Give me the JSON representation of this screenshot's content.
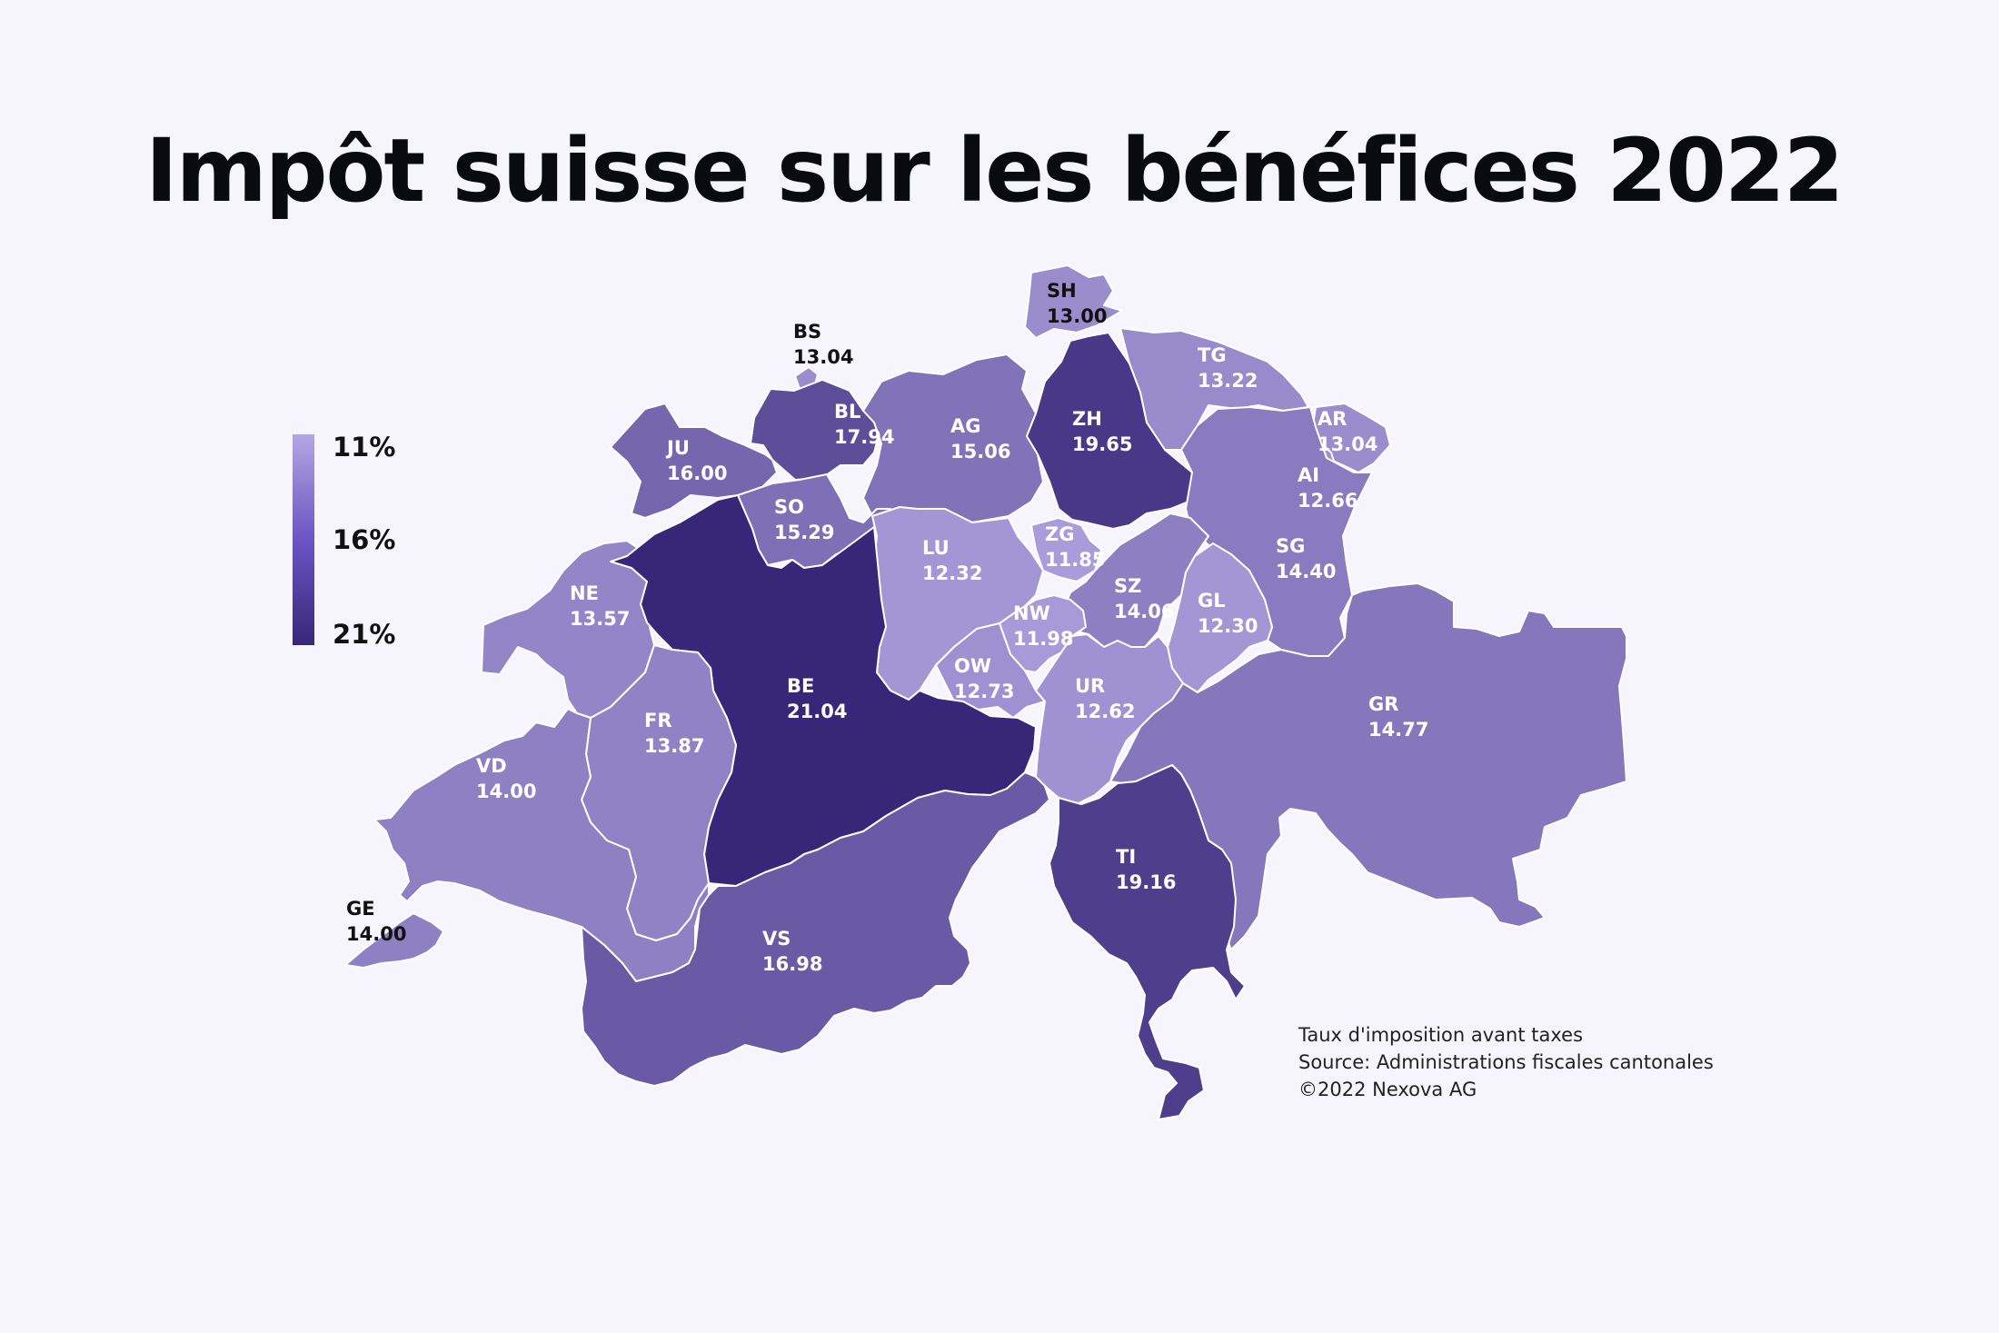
{
  "title": "Impôt suisse sur les bénéfices 2022",
  "legend": {
    "labels": [
      "11%",
      "16%",
      "21%"
    ],
    "min": 11,
    "max": 21
  },
  "colors": {
    "background": "#f6f5fd",
    "low": "#b2a7e3",
    "high": "#372779",
    "border": "#ffffff"
  },
  "cantons": [
    {
      "code": "SH",
      "value": "13.00"
    },
    {
      "code": "BS",
      "value": "13.04"
    },
    {
      "code": "TG",
      "value": "13.22"
    },
    {
      "code": "BL",
      "value": "17.94"
    },
    {
      "code": "AG",
      "value": "15.06"
    },
    {
      "code": "ZH",
      "value": "19.65"
    },
    {
      "code": "AR",
      "value": "13.04"
    },
    {
      "code": "JU",
      "value": "16.00"
    },
    {
      "code": "AI",
      "value": "12.66"
    },
    {
      "code": "SO",
      "value": "15.29"
    },
    {
      "code": "LU",
      "value": "12.32"
    },
    {
      "code": "ZG",
      "value": "11.85"
    },
    {
      "code": "SG",
      "value": "14.40"
    },
    {
      "code": "NE",
      "value": "13.57"
    },
    {
      "code": "SZ",
      "value": "14.06"
    },
    {
      "code": "GL",
      "value": "12.30"
    },
    {
      "code": "NW",
      "value": "11.98"
    },
    {
      "code": "OW",
      "value": "12.73"
    },
    {
      "code": "BE",
      "value": "21.04"
    },
    {
      "code": "UR",
      "value": "12.62"
    },
    {
      "code": "FR",
      "value": "13.87"
    },
    {
      "code": "GR",
      "value": "14.77"
    },
    {
      "code": "VD",
      "value": "14.00"
    },
    {
      "code": "TI",
      "value": "19.16"
    },
    {
      "code": "GE",
      "value": "14.00"
    },
    {
      "code": "VS",
      "value": "16.98"
    }
  ],
  "source_lines": [
    "Taux d'imposition avant taxes",
    "Source: Administrations fiscales cantonales",
    "©2022 Nexova AG"
  ]
}
